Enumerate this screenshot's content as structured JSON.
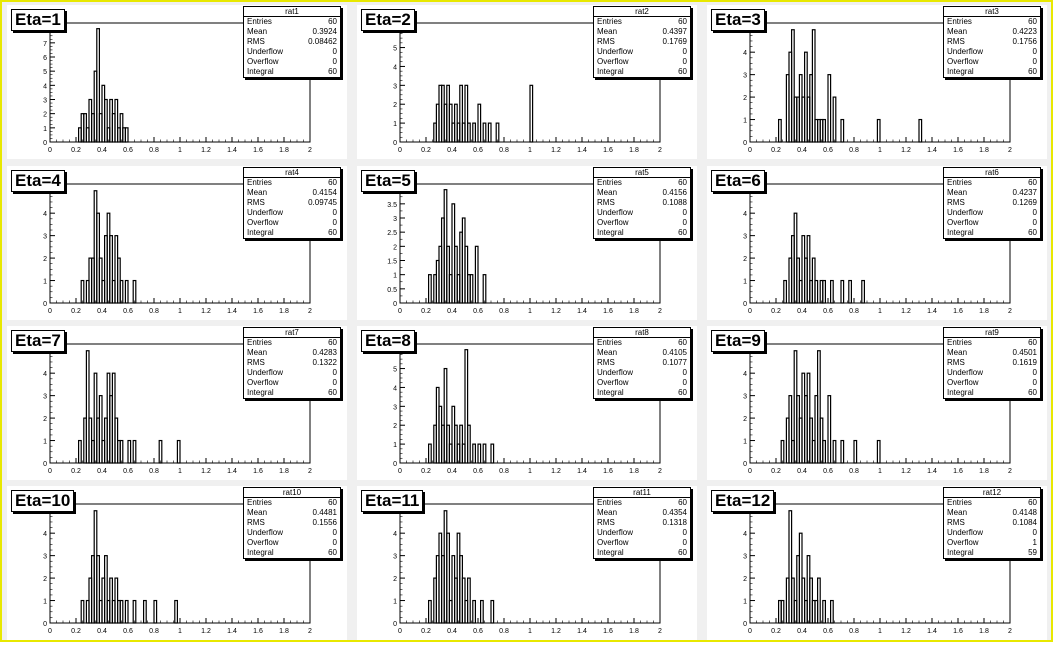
{
  "chart_data": [
    {
      "type": "histogram",
      "pad_label": "Eta=1",
      "stats_title": "rat1",
      "stats": {
        "Entries": "60",
        "Mean": "0.3924",
        "RMS": "0.08462",
        "Underflow": "0",
        "Overflow": "0",
        "Integral": "60"
      },
      "xlim": [
        0,
        2
      ],
      "ylim": [
        0,
        8.4
      ],
      "y_ticks": [
        0,
        1,
        2,
        3,
        4,
        5,
        6,
        7
      ],
      "x_ticks": [
        "0",
        "0.2",
        "0.4",
        "0.6",
        "0.8",
        "1",
        "1.2",
        "1.4",
        "1.6",
        "1.8",
        "2"
      ],
      "bins": [
        [
          0.22,
          1
        ],
        [
          0.24,
          2
        ],
        [
          0.26,
          2
        ],
        [
          0.28,
          1
        ],
        [
          0.3,
          3
        ],
        [
          0.32,
          2
        ],
        [
          0.34,
          5
        ],
        [
          0.36,
          8
        ],
        [
          0.38,
          2
        ],
        [
          0.4,
          4
        ],
        [
          0.42,
          3
        ],
        [
          0.44,
          1
        ],
        [
          0.46,
          3
        ],
        [
          0.48,
          2
        ],
        [
          0.5,
          3
        ],
        [
          0.52,
          1
        ],
        [
          0.54,
          2
        ],
        [
          0.56,
          1
        ],
        [
          0.58,
          1
        ]
      ]
    },
    {
      "type": "histogram",
      "pad_label": "Eta=2",
      "stats_title": "rat2",
      "stats": {
        "Entries": "60",
        "Mean": "0.4397",
        "RMS": "0.1769",
        "Underflow": "0",
        "Overflow": "0",
        "Integral": "60"
      },
      "xlim": [
        0,
        2
      ],
      "ylim": [
        0,
        6.3
      ],
      "y_ticks": [
        0,
        1,
        2,
        3,
        4,
        5,
        6
      ],
      "x_ticks": [
        "0",
        "0.2",
        "0.4",
        "0.6",
        "0.8",
        "1",
        "1.2",
        "1.4",
        "1.6",
        "1.8",
        "2"
      ],
      "bins": [
        [
          0.26,
          1
        ],
        [
          0.28,
          2
        ],
        [
          0.3,
          3
        ],
        [
          0.32,
          3
        ],
        [
          0.34,
          2
        ],
        [
          0.36,
          3
        ],
        [
          0.38,
          2
        ],
        [
          0.4,
          1
        ],
        [
          0.42,
          2
        ],
        [
          0.44,
          1
        ],
        [
          0.46,
          3
        ],
        [
          0.48,
          1
        ],
        [
          0.5,
          3
        ],
        [
          0.52,
          1
        ],
        [
          0.56,
          1
        ],
        [
          0.6,
          2
        ],
        [
          0.64,
          1
        ],
        [
          0.68,
          1
        ],
        [
          0.74,
          1
        ],
        [
          1.0,
          3
        ]
      ]
    },
    {
      "type": "histogram",
      "pad_label": "Eta=3",
      "stats_title": "rat3",
      "stats": {
        "Entries": "60",
        "Mean": "0.4223",
        "RMS": "0.1756",
        "Underflow": "0",
        "Overflow": "0",
        "Integral": "60"
      },
      "xlim": [
        0,
        2
      ],
      "ylim": [
        0,
        5.3
      ],
      "y_ticks": [
        0,
        1,
        2,
        3,
        4,
        5
      ],
      "x_ticks": [
        "0",
        "0.2",
        "0.4",
        "0.6",
        "0.8",
        "1",
        "1.2",
        "1.4",
        "1.6",
        "1.8",
        "2"
      ],
      "bins": [
        [
          0.22,
          1
        ],
        [
          0.28,
          3
        ],
        [
          0.3,
          4
        ],
        [
          0.32,
          5
        ],
        [
          0.34,
          2
        ],
        [
          0.36,
          2
        ],
        [
          0.38,
          3
        ],
        [
          0.4,
          2
        ],
        [
          0.42,
          4
        ],
        [
          0.44,
          2
        ],
        [
          0.46,
          3
        ],
        [
          0.48,
          5
        ],
        [
          0.5,
          1
        ],
        [
          0.52,
          1
        ],
        [
          0.54,
          1
        ],
        [
          0.56,
          1
        ],
        [
          0.6,
          3
        ],
        [
          0.64,
          2
        ],
        [
          0.7,
          1
        ],
        [
          0.98,
          1
        ],
        [
          1.3,
          1
        ]
      ]
    },
    {
      "type": "histogram",
      "pad_label": "Eta=4",
      "stats_title": "rat4",
      "stats": {
        "Entries": "60",
        "Mean": "0.4154",
        "RMS": "0.09745",
        "Underflow": "0",
        "Overflow": "0",
        "Integral": "60"
      },
      "xlim": [
        0,
        2
      ],
      "ylim": [
        0,
        5.3
      ],
      "y_ticks": [
        0,
        1,
        2,
        3,
        4,
        5
      ],
      "x_ticks": [
        "0",
        "0.2",
        "0.4",
        "0.6",
        "0.8",
        "1",
        "1.2",
        "1.4",
        "1.6",
        "1.8",
        "2"
      ],
      "bins": [
        [
          0.24,
          1
        ],
        [
          0.28,
          1
        ],
        [
          0.3,
          2
        ],
        [
          0.32,
          2
        ],
        [
          0.34,
          5
        ],
        [
          0.36,
          4
        ],
        [
          0.38,
          2
        ],
        [
          0.4,
          1
        ],
        [
          0.42,
          3
        ],
        [
          0.44,
          4
        ],
        [
          0.46,
          3
        ],
        [
          0.48,
          1
        ],
        [
          0.5,
          3
        ],
        [
          0.52,
          2
        ],
        [
          0.54,
          1
        ],
        [
          0.58,
          1
        ],
        [
          0.64,
          1
        ]
      ]
    },
    {
      "type": "histogram",
      "pad_label": "Eta=5",
      "stats_title": "rat5",
      "stats": {
        "Entries": "60",
        "Mean": "0.4156",
        "RMS": "0.1088",
        "Underflow": "0",
        "Overflow": "0",
        "Integral": "60"
      },
      "xlim": [
        0,
        2
      ],
      "ylim": [
        0,
        4.2
      ],
      "y_ticks": [
        0,
        0.5,
        1,
        1.5,
        2,
        2.5,
        3,
        3.5,
        4
      ],
      "x_ticks": [
        "0",
        "0.2",
        "0.4",
        "0.6",
        "0.8",
        "1",
        "1.2",
        "1.4",
        "1.6",
        "1.8",
        "2"
      ],
      "bins": [
        [
          0.22,
          1
        ],
        [
          0.26,
          1
        ],
        [
          0.28,
          1.5
        ],
        [
          0.3,
          2
        ],
        [
          0.32,
          3
        ],
        [
          0.34,
          4
        ],
        [
          0.36,
          2
        ],
        [
          0.38,
          1
        ],
        [
          0.4,
          3.5
        ],
        [
          0.42,
          2
        ],
        [
          0.44,
          1
        ],
        [
          0.46,
          2.5
        ],
        [
          0.48,
          3
        ],
        [
          0.5,
          2
        ],
        [
          0.52,
          1
        ],
        [
          0.54,
          1
        ],
        [
          0.58,
          2
        ],
        [
          0.64,
          1
        ]
      ]
    },
    {
      "type": "histogram",
      "pad_label": "Eta=6",
      "stats_title": "rat6",
      "stats": {
        "Entries": "60",
        "Mean": "0.4237",
        "RMS": "0.1269",
        "Underflow": "0",
        "Overflow": "0",
        "Integral": "60"
      },
      "xlim": [
        0,
        2
      ],
      "ylim": [
        0,
        5.3
      ],
      "y_ticks": [
        0,
        1,
        2,
        3,
        4,
        5
      ],
      "x_ticks": [
        "0",
        "0.2",
        "0.4",
        "0.6",
        "0.8",
        "1",
        "1.2",
        "1.4",
        "1.6",
        "1.8",
        "2"
      ],
      "bins": [
        [
          0.26,
          1
        ],
        [
          0.3,
          2
        ],
        [
          0.32,
          3
        ],
        [
          0.34,
          4
        ],
        [
          0.36,
          2
        ],
        [
          0.38,
          1
        ],
        [
          0.4,
          3
        ],
        [
          0.42,
          2
        ],
        [
          0.44,
          3
        ],
        [
          0.46,
          1
        ],
        [
          0.48,
          2
        ],
        [
          0.5,
          1
        ],
        [
          0.54,
          1
        ],
        [
          0.56,
          1
        ],
        [
          0.62,
          1
        ],
        [
          0.7,
          1
        ],
        [
          0.76,
          1
        ],
        [
          0.86,
          1
        ]
      ]
    },
    {
      "type": "histogram",
      "pad_label": "Eta=7",
      "stats_title": "rat7",
      "stats": {
        "Entries": "60",
        "Mean": "0.4283",
        "RMS": "0.1322",
        "Underflow": "0",
        "Overflow": "0",
        "Integral": "60"
      },
      "xlim": [
        0,
        2
      ],
      "ylim": [
        0,
        5.3
      ],
      "y_ticks": [
        0,
        1,
        2,
        3,
        4,
        5
      ],
      "x_ticks": [
        "0",
        "0.2",
        "0.4",
        "0.6",
        "0.8",
        "1",
        "1.2",
        "1.4",
        "1.6",
        "1.8",
        "2"
      ],
      "bins": [
        [
          0.22,
          1
        ],
        [
          0.26,
          2
        ],
        [
          0.28,
          5
        ],
        [
          0.3,
          2
        ],
        [
          0.32,
          1
        ],
        [
          0.34,
          4
        ],
        [
          0.36,
          2
        ],
        [
          0.38,
          3
        ],
        [
          0.4,
          1
        ],
        [
          0.42,
          2
        ],
        [
          0.44,
          4
        ],
        [
          0.46,
          3
        ],
        [
          0.48,
          4
        ],
        [
          0.5,
          2
        ],
        [
          0.52,
          1
        ],
        [
          0.54,
          1
        ],
        [
          0.6,
          1
        ],
        [
          0.64,
          1
        ],
        [
          0.84,
          1
        ],
        [
          0.98,
          1
        ]
      ]
    },
    {
      "type": "histogram",
      "pad_label": "Eta=8",
      "stats_title": "rat8",
      "stats": {
        "Entries": "60",
        "Mean": "0.4105",
        "RMS": "0.1077",
        "Underflow": "0",
        "Overflow": "0",
        "Integral": "60"
      },
      "xlim": [
        0,
        2
      ],
      "ylim": [
        0,
        6.3
      ],
      "y_ticks": [
        0,
        1,
        2,
        3,
        4,
        5,
        6
      ],
      "x_ticks": [
        "0",
        "0.2",
        "0.4",
        "0.6",
        "0.8",
        "1",
        "1.2",
        "1.4",
        "1.6",
        "1.8",
        "2"
      ],
      "bins": [
        [
          0.22,
          1
        ],
        [
          0.26,
          2
        ],
        [
          0.28,
          4
        ],
        [
          0.3,
          3
        ],
        [
          0.32,
          2
        ],
        [
          0.34,
          5
        ],
        [
          0.36,
          2
        ],
        [
          0.38,
          1
        ],
        [
          0.4,
          3
        ],
        [
          0.42,
          2
        ],
        [
          0.44,
          1
        ],
        [
          0.46,
          2
        ],
        [
          0.48,
          1
        ],
        [
          0.5,
          6
        ],
        [
          0.52,
          2
        ],
        [
          0.56,
          1
        ],
        [
          0.6,
          1
        ],
        [
          0.64,
          1
        ],
        [
          0.7,
          1
        ]
      ]
    },
    {
      "type": "histogram",
      "pad_label": "Eta=9",
      "stats_title": "rat9",
      "stats": {
        "Entries": "60",
        "Mean": "0.4501",
        "RMS": "0.1619",
        "Underflow": "0",
        "Overflow": "0",
        "Integral": "60"
      },
      "xlim": [
        0,
        2
      ],
      "ylim": [
        0,
        5.3
      ],
      "y_ticks": [
        0,
        1,
        2,
        3,
        4,
        5
      ],
      "x_ticks": [
        "0",
        "0.2",
        "0.4",
        "0.6",
        "0.8",
        "1",
        "1.2",
        "1.4",
        "1.6",
        "1.8",
        "2"
      ],
      "bins": [
        [
          0.24,
          1
        ],
        [
          0.28,
          2
        ],
        [
          0.3,
          3
        ],
        [
          0.32,
          1
        ],
        [
          0.34,
          5
        ],
        [
          0.36,
          3
        ],
        [
          0.38,
          2
        ],
        [
          0.4,
          4
        ],
        [
          0.42,
          3
        ],
        [
          0.44,
          4
        ],
        [
          0.46,
          2
        ],
        [
          0.48,
          1
        ],
        [
          0.5,
          3
        ],
        [
          0.52,
          5
        ],
        [
          0.54,
          2
        ],
        [
          0.56,
          1
        ],
        [
          0.6,
          3
        ],
        [
          0.64,
          1
        ],
        [
          0.7,
          1
        ],
        [
          0.8,
          1
        ],
        [
          0.98,
          1
        ]
      ]
    },
    {
      "type": "histogram",
      "pad_label": "Eta=10",
      "stats_title": "rat10",
      "stats": {
        "Entries": "60",
        "Mean": "0.4481",
        "RMS": "0.1556",
        "Underflow": "0",
        "Overflow": "0",
        "Integral": "60"
      },
      "xlim": [
        0,
        2
      ],
      "ylim": [
        0,
        5.3
      ],
      "y_ticks": [
        0,
        1,
        2,
        3,
        4,
        5
      ],
      "x_ticks": [
        "0",
        "0.2",
        "0.4",
        "0.6",
        "0.8",
        "1",
        "1.2",
        "1.4",
        "1.6",
        "1.8",
        "2"
      ],
      "bins": [
        [
          0.24,
          1
        ],
        [
          0.28,
          1
        ],
        [
          0.3,
          2
        ],
        [
          0.32,
          3
        ],
        [
          0.34,
          5
        ],
        [
          0.36,
          3
        ],
        [
          0.38,
          1
        ],
        [
          0.4,
          2
        ],
        [
          0.42,
          3
        ],
        [
          0.44,
          1
        ],
        [
          0.46,
          2
        ],
        [
          0.48,
          1
        ],
        [
          0.5,
          2
        ],
        [
          0.52,
          1
        ],
        [
          0.54,
          1
        ],
        [
          0.58,
          1
        ],
        [
          0.64,
          1
        ],
        [
          0.72,
          1
        ],
        [
          0.8,
          1
        ],
        [
          0.96,
          1
        ]
      ]
    },
    {
      "type": "histogram",
      "pad_label": "Eta=11",
      "stats_title": "rat11",
      "stats": {
        "Entries": "60",
        "Mean": "0.4354",
        "RMS": "0.1318",
        "Underflow": "0",
        "Overflow": "0",
        "Integral": "60"
      },
      "xlim": [
        0,
        2
      ],
      "ylim": [
        0,
        5.3
      ],
      "y_ticks": [
        0,
        1,
        2,
        3,
        4,
        5
      ],
      "x_ticks": [
        "0",
        "0.2",
        "0.4",
        "0.6",
        "0.8",
        "1",
        "1.2",
        "1.4",
        "1.6",
        "1.8",
        "2"
      ],
      "bins": [
        [
          0.22,
          1
        ],
        [
          0.26,
          2
        ],
        [
          0.28,
          3
        ],
        [
          0.3,
          4
        ],
        [
          0.32,
          3
        ],
        [
          0.34,
          5
        ],
        [
          0.36,
          4
        ],
        [
          0.38,
          1
        ],
        [
          0.4,
          3
        ],
        [
          0.42,
          2
        ],
        [
          0.44,
          4
        ],
        [
          0.46,
          3
        ],
        [
          0.48,
          2
        ],
        [
          0.5,
          1
        ],
        [
          0.52,
          2
        ],
        [
          0.56,
          1
        ],
        [
          0.62,
          1
        ],
        [
          0.7,
          1
        ]
      ]
    },
    {
      "type": "histogram",
      "pad_label": "Eta=12",
      "stats_title": "rat12",
      "stats": {
        "Entries": "60",
        "Mean": "0.4148",
        "RMS": "0.1084",
        "Underflow": "0",
        "Overflow": "1",
        "Integral": "59"
      },
      "xlim": [
        0,
        2
      ],
      "ylim": [
        0,
        5.3
      ],
      "y_ticks": [
        0,
        1,
        2,
        3,
        4,
        5
      ],
      "x_ticks": [
        "0",
        "0.2",
        "0.4",
        "0.6",
        "0.8",
        "1",
        "1.2",
        "1.4",
        "1.6",
        "1.8",
        "2"
      ],
      "bins": [
        [
          0.22,
          1
        ],
        [
          0.24,
          1
        ],
        [
          0.28,
          2
        ],
        [
          0.3,
          5
        ],
        [
          0.32,
          2
        ],
        [
          0.34,
          1
        ],
        [
          0.36,
          3
        ],
        [
          0.38,
          4
        ],
        [
          0.4,
          2
        ],
        [
          0.42,
          1
        ],
        [
          0.44,
          3
        ],
        [
          0.46,
          2
        ],
        [
          0.48,
          1
        ],
        [
          0.5,
          1
        ],
        [
          0.52,
          2
        ],
        [
          0.56,
          1
        ],
        [
          0.62,
          1
        ]
      ]
    }
  ]
}
